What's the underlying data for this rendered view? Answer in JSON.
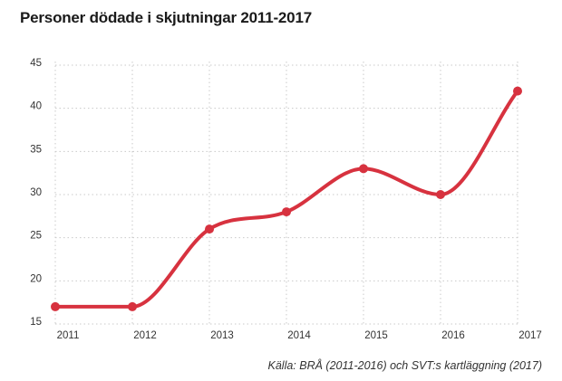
{
  "chart_data": {
    "type": "line",
    "title": "Personer dödade i skjutningar 2011-2017",
    "xlabel": "",
    "ylabel": "",
    "categories": [
      "2011",
      "2012",
      "2013",
      "2014",
      "2015",
      "2016",
      "2017"
    ],
    "series": [
      {
        "values": [
          17,
          17,
          26,
          28,
          33,
          30,
          42
        ]
      }
    ],
    "ylim": [
      15,
      45
    ],
    "yticks": [
      15,
      20,
      25,
      30,
      35,
      40,
      45
    ],
    "grid": true,
    "line_color": "#d7323f",
    "smooth": true
  },
  "source": "Källa: BRÅ (2011-2016) och SVT:s kartläggning (2017)"
}
